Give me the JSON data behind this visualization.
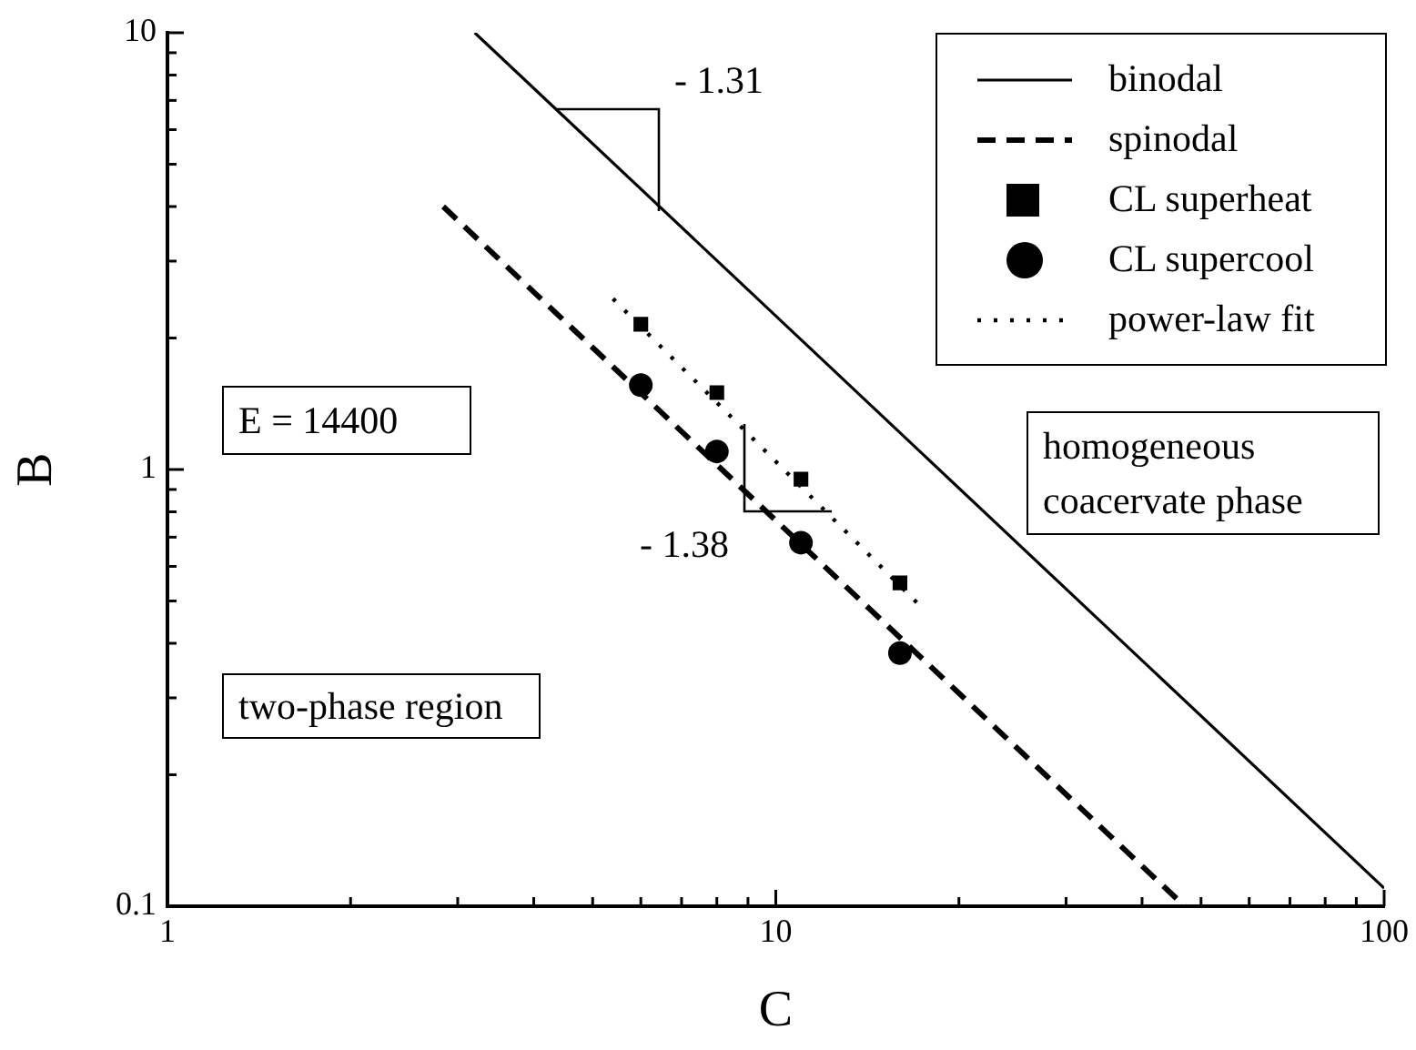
{
  "chart_data": {
    "type": "line",
    "xlabel": "C",
    "ylabel": "B",
    "log": "xy",
    "grid": false,
    "legend": "top right",
    "xlim": [
      1,
      100
    ],
    "ylim": [
      0.1,
      10
    ],
    "xticks": [
      1,
      {
        "value": 2,
        "label": null
      },
      {
        "value": 3,
        "label": null
      },
      {
        "value": 4,
        "label": null
      },
      {
        "value": 5,
        "label": null
      },
      {
        "value": 6,
        "label": null
      },
      {
        "value": 7,
        "label": null
      },
      {
        "value": 8,
        "label": null
      },
      {
        "value": 9,
        "label": null
      },
      10,
      {
        "value": 20,
        "label": null
      },
      {
        "value": 30,
        "label": null
      },
      {
        "value": 40,
        "label": null
      },
      {
        "value": 50,
        "label": null
      },
      {
        "value": 60,
        "label": null
      },
      {
        "value": 70,
        "label": null
      },
      {
        "value": 80,
        "label": null
      },
      {
        "value": 90,
        "label": null
      },
      100
    ],
    "yticks": [
      0.1,
      {
        "value": 0.2,
        "label": null
      },
      {
        "value": 0.3,
        "label": null
      },
      {
        "value": 0.4,
        "label": null
      },
      {
        "value": 0.5,
        "label": null
      },
      {
        "value": 0.6,
        "label": null
      },
      {
        "value": 0.7,
        "label": null
      },
      {
        "value": 0.8,
        "label": null
      },
      {
        "value": 0.9,
        "label": null
      },
      1,
      {
        "value": 2,
        "label": null
      },
      {
        "value": 3,
        "label": null
      },
      {
        "value": 4,
        "label": null
      },
      {
        "value": 5,
        "label": null
      },
      {
        "value": 6,
        "label": null
      },
      {
        "value": 7,
        "label": null
      },
      {
        "value": 8,
        "label": null
      },
      {
        "value": 9,
        "label": null
      },
      10
    ],
    "series": [
      {
        "name": "binodal",
        "type": "line",
        "color": "#000000",
        "line_style": "solid",
        "marker": "none",
        "x": [
          3.2,
          100
        ],
        "values": [
          10,
          0.11
        ]
      },
      {
        "name": "spinodal",
        "type": "line",
        "color": "#000000",
        "line_style": "dashed",
        "marker": "none",
        "x": [
          2.84,
          47
        ],
        "values": [
          4.0,
          0.1
        ]
      },
      {
        "name": "CL superheat",
        "type": "scatter",
        "color": "#000000",
        "marker": "square",
        "x": [
          6,
          8,
          11,
          16
        ],
        "values": [
          2.15,
          1.5,
          0.95,
          0.55
        ]
      },
      {
        "name": "CL supercool",
        "type": "scatter",
        "color": "#000000",
        "marker": "circle",
        "x": [
          6,
          8,
          11,
          16
        ],
        "values": [
          1.56,
          1.1,
          0.68,
          0.38
        ]
      },
      {
        "name": "power-law fit",
        "type": "line",
        "color": "#000000",
        "line_style": "dotted",
        "marker": "none",
        "x": [
          5.4,
          17.2
        ],
        "values": [
          2.46,
          0.49
        ]
      }
    ],
    "annotations": [
      "- 1.31",
      "- 1.38",
      "E = 14400",
      "homogeneous coacervate phase",
      "two-phase region"
    ]
  }
}
